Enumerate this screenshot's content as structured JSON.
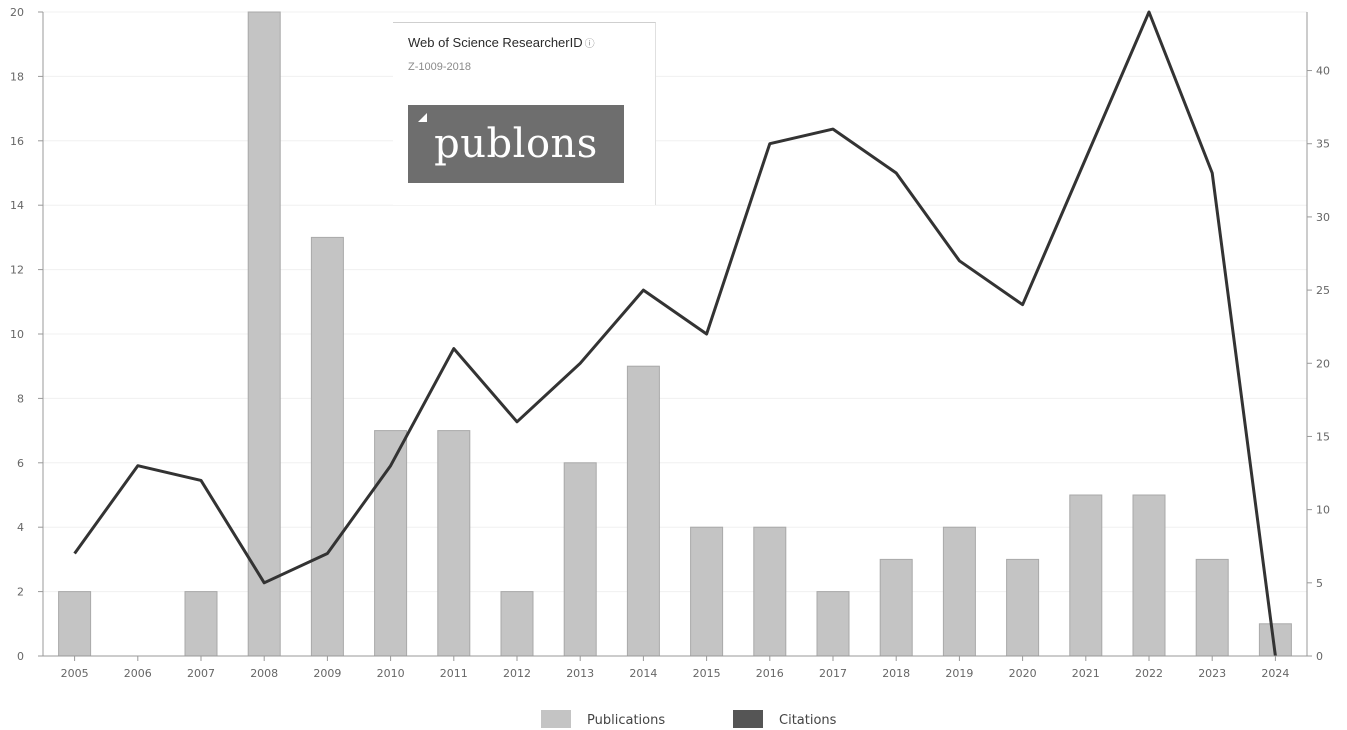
{
  "chart_data": {
    "type": "bar+line",
    "categories": [
      "2005",
      "2006",
      "2007",
      "2008",
      "2009",
      "2010",
      "2011",
      "2012",
      "2013",
      "2014",
      "2015",
      "2016",
      "2017",
      "2018",
      "2019",
      "2020",
      "2021",
      "2022",
      "2023",
      "2024"
    ],
    "series": [
      {
        "name": "Publications",
        "type": "bar",
        "axis": "left",
        "values": [
          2,
          0,
          2,
          20,
          13,
          7,
          7,
          2,
          6,
          9,
          4,
          4,
          2,
          3,
          4,
          3,
          5,
          5,
          3,
          1
        ]
      },
      {
        "name": "Citations",
        "type": "line",
        "axis": "right",
        "values": [
          7,
          13,
          12,
          5,
          7,
          13,
          21,
          16,
          20,
          25,
          22,
          35,
          36,
          33,
          27,
          24,
          34,
          44,
          33,
          0
        ]
      }
    ],
    "y_left": {
      "min": 0,
      "max": 20,
      "ticks": [
        0,
        2,
        4,
        6,
        8,
        10,
        12,
        14,
        16,
        18,
        20
      ]
    },
    "y_right": {
      "min": 0,
      "max": 44,
      "ticks": [
        0,
        5,
        10,
        15,
        20,
        25,
        30,
        35,
        40
      ]
    },
    "legend_placement": "bottom-center",
    "colors": {
      "bar": "#c4c4c4",
      "bar_stroke": "#a9a9a9",
      "line": "#333333",
      "legend_citations": "#555555",
      "axis": "#999999"
    }
  },
  "overlay": {
    "title": "Web of Science ResearcherID",
    "info_icon": "ⓘ",
    "researcher_id": "Z-1009-2018",
    "logo_text": "publons"
  }
}
